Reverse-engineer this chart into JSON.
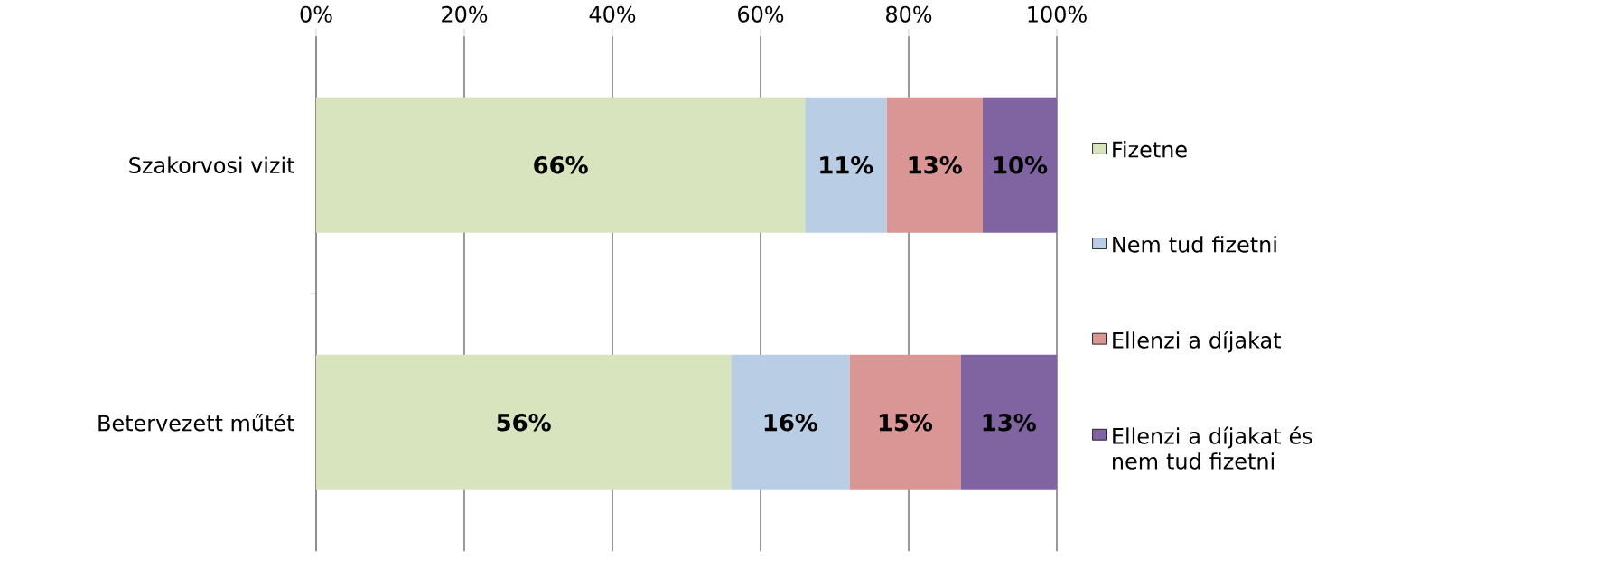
{
  "chart_data": {
    "type": "bar",
    "orientation": "horizontal",
    "stacked": true,
    "categories": [
      "Szakorvosi vizit",
      "Betervezett műtét"
    ],
    "series": [
      {
        "name": "Fizetne",
        "color": "#d7e4bd",
        "values": [
          66,
          56
        ],
        "value_labels": [
          "66%",
          "56%"
        ]
      },
      {
        "name": "Nem tud fizetni",
        "color": "#b9cde5",
        "values": [
          11,
          16
        ],
        "value_labels": [
          "11%",
          "16%"
        ]
      },
      {
        "name": "Ellenzi a díjakat",
        "color": "#d99694",
        "values": [
          13,
          15
        ],
        "value_labels": [
          "13%",
          "15%"
        ]
      },
      {
        "name": "Ellenzi a díjakat és nem tud fizetni",
        "color": "#8064a2",
        "values": [
          10,
          13
        ],
        "value_labels": [
          "10%",
          "13%"
        ]
      }
    ],
    "xlim": [
      0,
      100
    ],
    "xticks": [
      {
        "value": 0,
        "label": "0%"
      },
      {
        "value": 20,
        "label": "20%"
      },
      {
        "value": 40,
        "label": "40%"
      },
      {
        "value": 60,
        "label": "60%"
      },
      {
        "value": 80,
        "label": "80%"
      },
      {
        "value": 100,
        "label": "100%"
      }
    ],
    "grid": "x",
    "legend": "right"
  }
}
